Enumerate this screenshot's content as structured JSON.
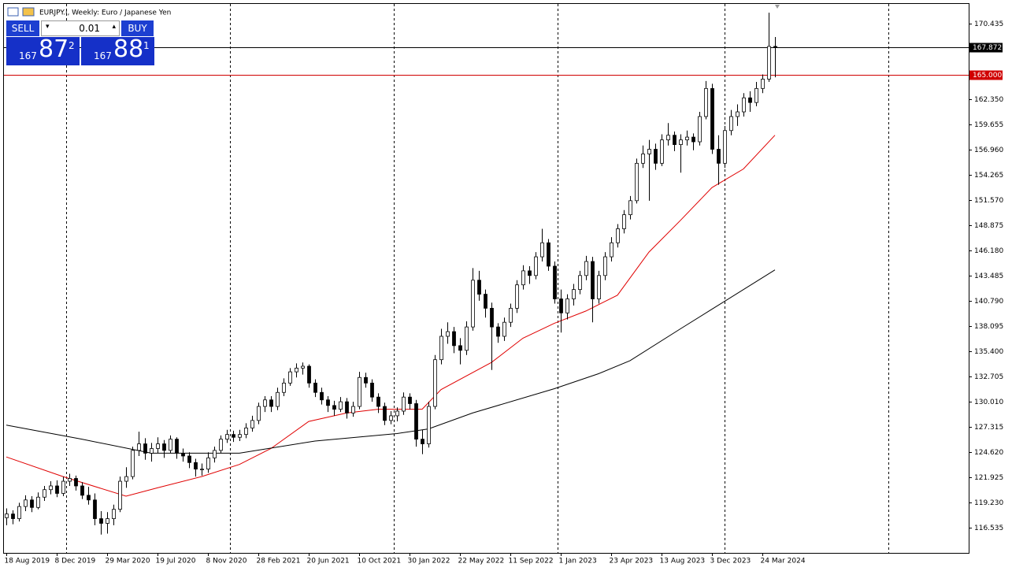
{
  "header": {
    "title": "EURJPY.i, Weekly:  Euro / Japanese Yen"
  },
  "trade_panel": {
    "sell_label": "SELL",
    "buy_label": "BUY",
    "volume": "0.01",
    "bid": {
      "big": "167",
      "pips": "87",
      "point": "2"
    },
    "ask": {
      "big": "167",
      "pips": "88",
      "point": "1"
    }
  },
  "chart_data": {
    "type": "candlestick",
    "candles": [
      [
        117.6,
        118.6,
        116.8,
        118.0
      ],
      [
        118.0,
        118.4,
        116.9,
        117.5
      ],
      [
        117.5,
        119.2,
        117.2,
        118.8
      ],
      [
        118.8,
        120.0,
        118.3,
        119.5
      ],
      [
        119.5,
        119.9,
        118.2,
        118.7
      ],
      [
        118.7,
        120.3,
        118.5,
        119.8
      ],
      [
        119.8,
        121.0,
        119.4,
        120.6
      ],
      [
        120.6,
        121.5,
        120.1,
        121.0
      ],
      [
        121.0,
        121.6,
        119.8,
        120.2
      ],
      [
        120.2,
        122.0,
        119.9,
        121.5
      ],
      [
        121.5,
        122.3,
        121.0,
        121.8
      ],
      [
        121.8,
        122.1,
        120.5,
        121.0
      ],
      [
        121.0,
        121.4,
        119.6,
        120.0
      ],
      [
        120.0,
        120.9,
        119.0,
        119.5
      ],
      [
        119.5,
        120.2,
        116.8,
        117.5
      ],
      [
        117.5,
        118.3,
        115.8,
        117.0
      ],
      [
        117.0,
        118.2,
        115.9,
        117.5
      ],
      [
        117.5,
        119.0,
        116.8,
        118.5
      ],
      [
        118.5,
        122.0,
        118.2,
        121.5
      ],
      [
        121.5,
        123.0,
        120.8,
        122.0
      ],
      [
        122.0,
        125.2,
        121.7,
        124.8
      ],
      [
        124.8,
        126.8,
        124.2,
        125.5
      ],
      [
        125.5,
        126.1,
        123.8,
        124.5
      ],
      [
        124.5,
        125.6,
        123.6,
        125.0
      ],
      [
        125.0,
        126.2,
        124.5,
        125.5
      ],
      [
        125.5,
        125.9,
        124.0,
        124.8
      ],
      [
        124.8,
        126.4,
        124.5,
        126.0
      ],
      [
        126.0,
        126.2,
        123.9,
        124.5
      ],
      [
        124.5,
        125.0,
        123.6,
        124.2
      ],
      [
        124.2,
        124.6,
        122.9,
        123.5
      ],
      [
        123.5,
        123.9,
        122.0,
        122.8
      ],
      [
        122.8,
        123.4,
        122.1,
        122.8
      ],
      [
        122.8,
        124.6,
        122.4,
        124.0
      ],
      [
        124.0,
        125.2,
        123.5,
        124.8
      ],
      [
        124.8,
        126.4,
        124.5,
        126.0
      ],
      [
        126.0,
        127.0,
        125.6,
        126.5
      ],
      [
        126.5,
        126.9,
        125.7,
        126.2
      ],
      [
        126.2,
        127.0,
        125.8,
        126.5
      ],
      [
        126.5,
        127.7,
        126.1,
        127.2
      ],
      [
        127.2,
        128.5,
        126.8,
        128.0
      ],
      [
        128.0,
        129.9,
        127.6,
        129.5
      ],
      [
        129.5,
        130.6,
        128.9,
        130.2
      ],
      [
        130.2,
        130.6,
        128.9,
        129.5
      ],
      [
        129.5,
        131.5,
        129.1,
        131.0
      ],
      [
        131.0,
        132.5,
        130.6,
        132.0
      ],
      [
        132.0,
        133.6,
        131.7,
        133.2
      ],
      [
        133.2,
        134.1,
        132.6,
        133.6
      ],
      [
        133.6,
        134.2,
        132.9,
        133.8
      ],
      [
        133.8,
        134.0,
        131.5,
        132.0
      ],
      [
        132.0,
        132.4,
        130.5,
        131.0
      ],
      [
        131.0,
        131.5,
        129.7,
        130.2
      ],
      [
        130.2,
        130.6,
        128.9,
        129.6
      ],
      [
        129.6,
        130.1,
        128.5,
        129.2
      ],
      [
        129.2,
        130.5,
        128.9,
        130.0
      ],
      [
        130.0,
        130.4,
        128.2,
        128.8
      ],
      [
        128.8,
        130.0,
        128.4,
        129.5
      ],
      [
        129.5,
        133.2,
        129.2,
        132.6
      ],
      [
        132.6,
        133.1,
        131.5,
        132.0
      ],
      [
        132.0,
        132.4,
        130.0,
        130.5
      ],
      [
        130.5,
        130.9,
        128.8,
        129.5
      ],
      [
        129.5,
        129.9,
        127.5,
        128.0
      ],
      [
        128.0,
        129.0,
        127.6,
        128.5
      ],
      [
        128.5,
        129.4,
        127.9,
        129.0
      ],
      [
        129.0,
        131.0,
        128.6,
        130.5
      ],
      [
        130.5,
        130.9,
        129.2,
        129.8
      ],
      [
        129.8,
        130.2,
        125.2,
        126.0
      ],
      [
        126.0,
        127.0,
        124.4,
        125.5
      ],
      [
        125.5,
        130.0,
        125.1,
        129.5
      ],
      [
        129.5,
        135.0,
        129.2,
        134.5
      ],
      [
        134.5,
        137.8,
        134.0,
        137.0
      ],
      [
        137.0,
        138.5,
        136.2,
        137.5
      ],
      [
        137.5,
        138.0,
        135.2,
        136.0
      ],
      [
        136.0,
        136.8,
        134.0,
        135.5
      ],
      [
        135.5,
        138.6,
        135.0,
        138.0
      ],
      [
        138.0,
        144.3,
        137.6,
        143.0
      ],
      [
        143.0,
        144.0,
        140.8,
        141.5
      ],
      [
        141.5,
        142.0,
        139.0,
        140.0
      ],
      [
        140.0,
        140.6,
        133.4,
        138.0
      ],
      [
        138.0,
        138.4,
        136.3,
        137.0
      ],
      [
        137.0,
        139.0,
        136.5,
        138.5
      ],
      [
        138.5,
        140.5,
        138.0,
        140.0
      ],
      [
        140.0,
        143.0,
        139.5,
        142.5
      ],
      [
        142.5,
        144.6,
        142.0,
        144.0
      ],
      [
        144.0,
        144.5,
        142.6,
        143.5
      ],
      [
        143.5,
        146.0,
        143.1,
        145.5
      ],
      [
        145.5,
        148.5,
        145.0,
        147.0
      ],
      [
        147.0,
        147.4,
        144.0,
        144.5
      ],
      [
        144.5,
        145.0,
        140.5,
        141.0
      ],
      [
        141.0,
        142.0,
        137.4,
        139.5
      ],
      [
        139.5,
        141.5,
        138.8,
        141.0
      ],
      [
        141.0,
        142.6,
        140.3,
        142.0
      ],
      [
        142.0,
        144.0,
        141.5,
        143.5
      ],
      [
        143.5,
        145.6,
        143.0,
        145.0
      ],
      [
        145.0,
        145.5,
        138.5,
        141.0
      ],
      [
        141.0,
        144.0,
        140.5,
        143.5
      ],
      [
        143.5,
        146.0,
        143.0,
        145.5
      ],
      [
        145.5,
        147.6,
        145.0,
        147.0
      ],
      [
        147.0,
        149.0,
        146.5,
        148.5
      ],
      [
        148.5,
        150.5,
        148.0,
        150.0
      ],
      [
        150.0,
        152.0,
        149.5,
        151.5
      ],
      [
        151.5,
        156.0,
        151.2,
        155.5
      ],
      [
        155.5,
        157.4,
        155.0,
        156.5
      ],
      [
        156.5,
        158.0,
        151.5,
        157.0
      ],
      [
        157.0,
        157.6,
        154.8,
        155.5
      ],
      [
        155.5,
        158.6,
        155.2,
        158.0
      ],
      [
        158.0,
        159.8,
        157.4,
        158.5
      ],
      [
        158.5,
        158.9,
        156.8,
        157.5
      ],
      [
        157.5,
        158.6,
        154.5,
        158.0
      ],
      [
        158.0,
        159.0,
        157.4,
        158.3
      ],
      [
        158.3,
        158.7,
        156.9,
        157.8
      ],
      [
        157.8,
        161.0,
        157.4,
        160.5
      ],
      [
        160.5,
        164.3,
        160.2,
        163.5
      ],
      [
        163.5,
        164.0,
        156.5,
        157.0
      ],
      [
        157.0,
        158.5,
        153.2,
        155.5
      ],
      [
        155.5,
        159.5,
        155.0,
        159.0
      ],
      [
        159.0,
        161.2,
        158.5,
        160.5
      ],
      [
        160.5,
        161.8,
        159.5,
        161.0
      ],
      [
        161.0,
        163.0,
        160.5,
        162.5
      ],
      [
        162.5,
        163.2,
        161.0,
        162.0
      ],
      [
        162.0,
        164.2,
        161.6,
        163.5
      ],
      [
        163.5,
        165.0,
        163.0,
        164.5
      ],
      [
        164.5,
        171.6,
        164.2,
        168.0
      ],
      [
        168.0,
        169.0,
        164.7,
        167.872
      ]
    ],
    "lines": [
      {
        "color": "#e00000",
        "x": [
          0,
          9,
          19,
          24,
          31,
          37,
          42,
          48,
          54,
          59,
          66,
          69,
          77,
          82,
          87,
          92,
          97,
          102,
          107,
          112,
          117,
          122
        ],
        "values": [
          124.1,
          122.0,
          119.9,
          120.8,
          122.0,
          123.3,
          125.0,
          127.9,
          128.8,
          129.2,
          129.2,
          131.3,
          134.2,
          136.8,
          138.4,
          139.7,
          141.4,
          146.0,
          149.4,
          152.9,
          154.9,
          158.5
        ]
      },
      {
        "color": "#000000",
        "x": [
          0,
          12,
          23,
          37,
          49,
          62,
          67,
          74,
          87,
          94,
          99,
          107,
          112,
          122
        ],
        "values": [
          127.5,
          126.0,
          124.5,
          124.5,
          125.8,
          126.6,
          127.1,
          128.8,
          131.4,
          133.0,
          134.4,
          137.8,
          139.9,
          144.1
        ]
      }
    ],
    "hlines": [
      {
        "value": 167.872,
        "color": "#000000"
      },
      {
        "value": 165,
        "label": "165.000",
        "color": "#d00000"
      }
    ],
    "xlim": [
      -1,
      152.75
    ],
    "xticks": [
      {
        "value": 0,
        "label": "18 Aug 2019"
      },
      {
        "value": 8,
        "label": "8 Dec 2019"
      },
      {
        "value": 16,
        "label": "29 Mar 2020"
      },
      {
        "value": 24,
        "label": "19 Jul 2020"
      },
      {
        "value": 32,
        "label": "8 Nov 2020"
      },
      {
        "value": 40,
        "label": "28 Feb 2021"
      },
      {
        "value": 48,
        "label": "20 Jun 2021"
      },
      {
        "value": 56,
        "label": "10 Oct 2021"
      },
      {
        "value": 64,
        "label": "30 Jan 2022"
      },
      {
        "value": 72,
        "label": "22 May 2022"
      },
      {
        "value": 80,
        "label": "11 Sep 2022"
      },
      {
        "value": 88,
        "label": "1 Jan 2023"
      },
      {
        "value": 96,
        "label": "23 Apr 2023"
      },
      {
        "value": 104,
        "label": "13 Aug 2023"
      },
      {
        "value": 112,
        "label": "3 Dec 2023"
      },
      {
        "value": 120,
        "label": "24 Mar 2024"
      }
    ],
    "ylim": [
      113.84,
      172.54
    ],
    "yticks": [
      170.435,
      {
        "value": 162.35,
        "label": "162.350"
      },
      159.655,
      {
        "value": 156.96,
        "label": "156.960"
      },
      154.265,
      {
        "value": 151.57,
        "label": "151.570"
      },
      148.875,
      {
        "value": 146.18,
        "label": "146.180"
      },
      143.485,
      {
        "value": 140.79,
        "label": "140.790"
      },
      138.095,
      {
        "value": 135.4,
        "label": "135.400"
      },
      132.705,
      {
        "value": 130.01,
        "label": "130.010"
      },
      127.315,
      {
        "value": 124.62,
        "label": "124.620"
      },
      121.925,
      {
        "value": 119.23,
        "label": "119.230"
      },
      116.535
    ],
    "grid": false
  }
}
